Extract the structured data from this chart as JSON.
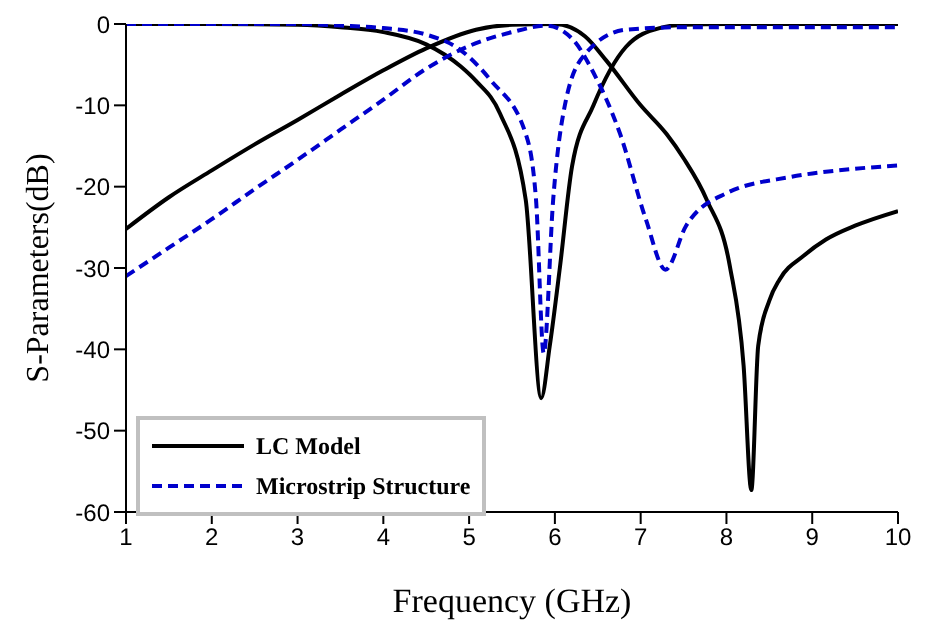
{
  "chart_data": {
    "type": "line",
    "xlabel": "Frequency (GHz)",
    "ylabel": "S-Parameters(dB)",
    "xlim": [
      1,
      10
    ],
    "ylim": [
      -60,
      0
    ],
    "xticks": [
      1,
      2,
      3,
      4,
      5,
      6,
      7,
      8,
      9,
      10
    ],
    "yticks": [
      -60,
      -50,
      -40,
      -30,
      -20,
      -10,
      0
    ],
    "grid": false,
    "legend": "bottom left",
    "marker": "none",
    "series": [
      {
        "name": "LC Model",
        "color": "#000000",
        "line_style": "solid",
        "x": [
          1,
          1.5,
          2,
          2.5,
          3,
          3.5,
          4,
          4.5,
          5.08,
          5.5,
          6,
          6.35,
          6.6,
          7,
          7.3,
          7.5,
          7.77,
          8.04,
          8.2,
          8.29,
          8.37,
          8.5,
          8.62,
          8.9,
          9.16,
          9.5,
          10
        ],
        "values": [
          -25.2,
          -21.3,
          -18,
          -14.8,
          -11.8,
          -8.7,
          -5.7,
          -3,
          -0.7,
          -0.1,
          0,
          -1.5,
          -4.5,
          -10,
          -13.5,
          -16.5,
          -21.6,
          -29.8,
          -42,
          -57.3,
          -39.6,
          -34,
          -31.4,
          -28.5,
          -26.5,
          -24.8,
          -23
        ]
      },
      {
        "color": "#000000",
        "line_style": "solid",
        "x": [
          1,
          2,
          3,
          3.5,
          4,
          4.5,
          4.9,
          5.08,
          5.36,
          5.66,
          5.84,
          5.94,
          6.06,
          6.2,
          6.45,
          6.83,
          7.22,
          7.5,
          8,
          9,
          10
        ],
        "values": [
          0,
          0,
          -0.1,
          -0.4,
          -1,
          -2.5,
          -5.2,
          -7,
          -11,
          -21.6,
          -46,
          -39.6,
          -29.8,
          -17.5,
          -10,
          -2.8,
          -0.5,
          -0.1,
          0,
          0,
          0
        ]
      },
      {
        "name": "Microstrip Structure",
        "color": "#0000cc",
        "line_style": "dashed",
        "x": [
          1,
          1.5,
          2,
          2.5,
          3,
          3.5,
          4,
          4.5,
          5,
          5.5,
          5.9,
          6.2,
          6.45,
          6.76,
          7.06,
          7.29,
          7.53,
          8,
          8.75,
          9.5,
          10
        ],
        "values": [
          -31,
          -27.5,
          -24,
          -20.3,
          -16.7,
          -13,
          -9.3,
          -5.5,
          -2.7,
          -1,
          -0.2,
          -1.8,
          -6,
          -13.5,
          -24,
          -30.2,
          -24.8,
          -20.8,
          -18.8,
          -17.8,
          -17.4
        ]
      },
      {
        "color": "#0000cc",
        "line_style": "dashed",
        "x": [
          1,
          2,
          3,
          3.5,
          4,
          4.5,
          4.9,
          5.25,
          5.66,
          5.78,
          5.87,
          5.98,
          6.13,
          6.36,
          6.83,
          7.5,
          8.5,
          10
        ],
        "values": [
          0,
          0,
          0,
          -0.2,
          -0.5,
          -1.3,
          -3.2,
          -6.9,
          -13.5,
          -21.6,
          -40.5,
          -21.6,
          -9.3,
          -3.6,
          -0.7,
          -0.4,
          -0.4,
          -0.4
        ]
      }
    ]
  }
}
